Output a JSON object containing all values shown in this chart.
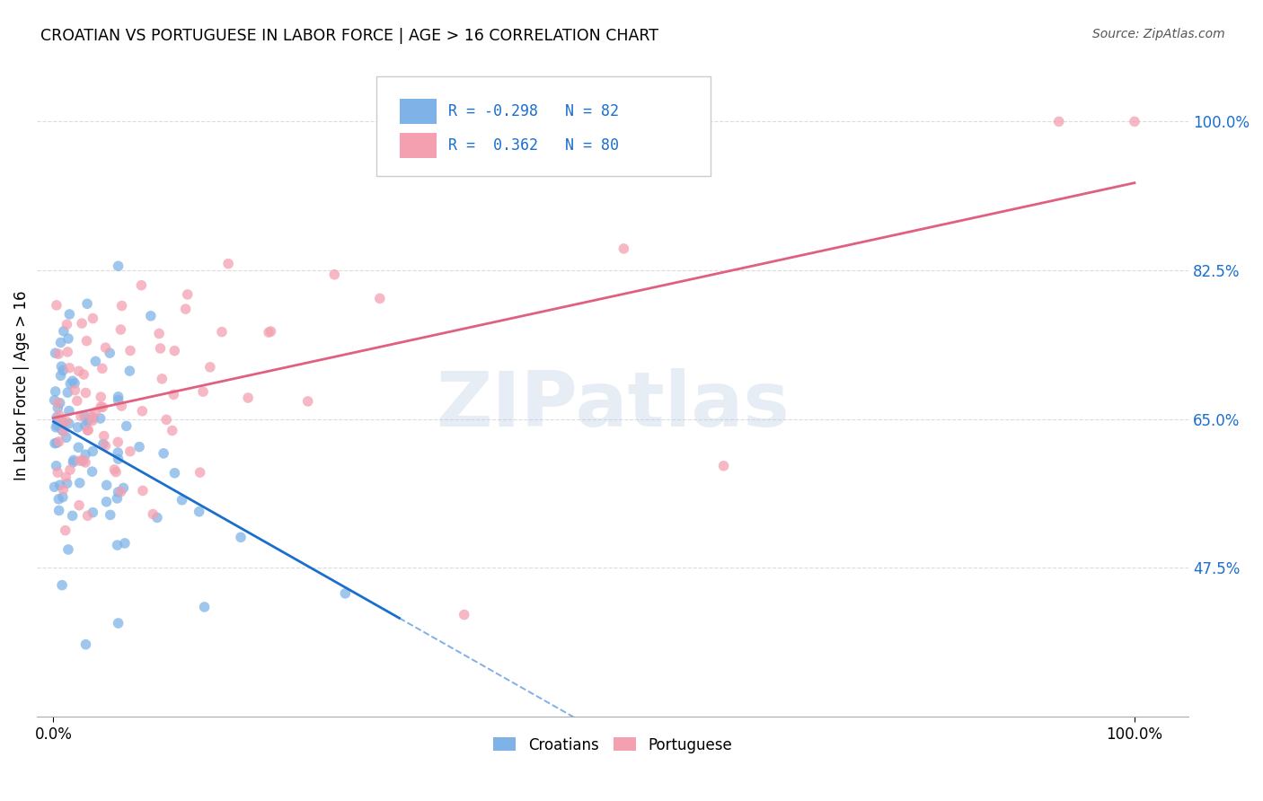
{
  "title": "CROATIAN VS PORTUGUESE IN LABOR FORCE | AGE > 16 CORRELATION CHART",
  "source": "Source: ZipAtlas.com",
  "ylabel": "In Labor Force | Age > 16",
  "color_croatian": "#7fb3e8",
  "color_portuguese": "#f4a0b0",
  "color_blue": "#1a6fce",
  "color_pink": "#e06080",
  "watermark_text": "ZIPatlas",
  "watermark_color": "#b8cce4",
  "grid_color": "#cccccc",
  "bg_color": "#ffffff",
  "ytick_values": [
    0.475,
    0.65,
    0.825,
    1.0
  ],
  "ytick_labels": [
    "47.5%",
    "65.0%",
    "82.5%",
    "100.0%"
  ],
  "xtick_values": [
    0.0,
    1.0
  ],
  "xtick_labels": [
    "0.0%",
    "100.0%"
  ],
  "xlim": [
    -0.015,
    1.05
  ],
  "ylim": [
    0.3,
    1.08
  ],
  "legend_R1": "-0.298",
  "legend_N1": "82",
  "legend_R2": "0.362",
  "legend_N2": "80",
  "croatian_seed": 42,
  "portuguese_seed": 77,
  "scatter_size": 70,
  "scatter_alpha": 0.75,
  "trend_linewidth": 2.0
}
